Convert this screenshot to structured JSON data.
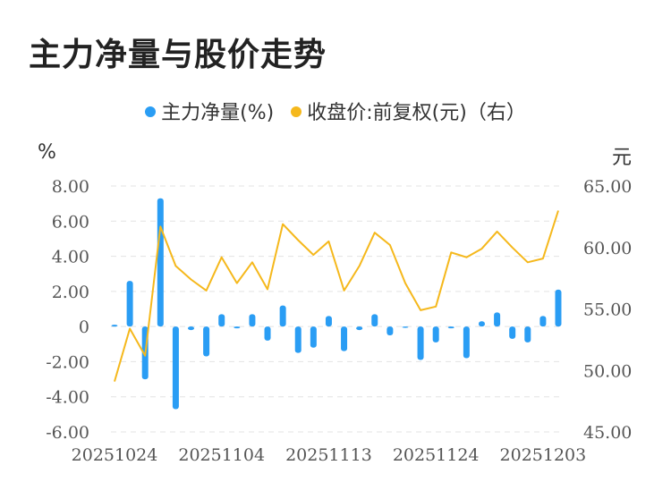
{
  "title": "主力净量与股价走势",
  "colors": {
    "bar": "#2a9df4",
    "line": "#f5b81c",
    "grid": "#e3e3e3"
  },
  "chart_data": {
    "type": "bar+line",
    "title": "主力净量与股价走势",
    "legend": [
      "主力净量(%)",
      "收盘价:前复权(元)（右）"
    ],
    "legend_position": "top-center",
    "ylabel_left": "%",
    "ylabel_right": "元",
    "left_axis": {
      "min": -6,
      "max": 8,
      "step": 2,
      "ticks": [
        "8.00",
        "6.00",
        "4.00",
        "2.00",
        "0",
        "-2.00",
        "-4.00",
        "-6.00"
      ]
    },
    "right_axis": {
      "min": 45,
      "max": 65,
      "step": 5,
      "ticks": [
        "65.00",
        "60.00",
        "55.00",
        "50.00",
        "45.00"
      ]
    },
    "x_ticks": [
      "20251024",
      "20251104",
      "20251113",
      "20251124",
      "20251203"
    ],
    "x_tick_index": [
      0,
      7,
      14,
      21,
      28
    ],
    "grid": "horizontal dashed",
    "series": [
      {
        "name": "主力净量(%)",
        "type": "bar",
        "values": [
          0.1,
          2.6,
          -3.0,
          7.3,
          -4.7,
          -0.2,
          -1.7,
          0.7,
          -0.1,
          0.7,
          -0.8,
          1.2,
          -1.5,
          -1.2,
          0.6,
          -1.4,
          -0.2,
          0.7,
          -0.5,
          0,
          -1.9,
          -0.9,
          -0.1,
          -1.8,
          0.3,
          0.8,
          -0.7,
          -0.9,
          0.6,
          2.1
        ]
      },
      {
        "name": "收盘价:前复权(元)（右）",
        "type": "line",
        "values": [
          49.1,
          53.4,
          51.2,
          61.7,
          58.5,
          57.4,
          56.5,
          59.2,
          57.1,
          58.8,
          56.6,
          61.9,
          60.6,
          59.4,
          60.5,
          56.5,
          58.5,
          61.2,
          60.2,
          57.1,
          54.9,
          55.2,
          59.6,
          59.2,
          59.9,
          61.3,
          60.0,
          58.8,
          59.1,
          63.0
        ]
      }
    ]
  }
}
